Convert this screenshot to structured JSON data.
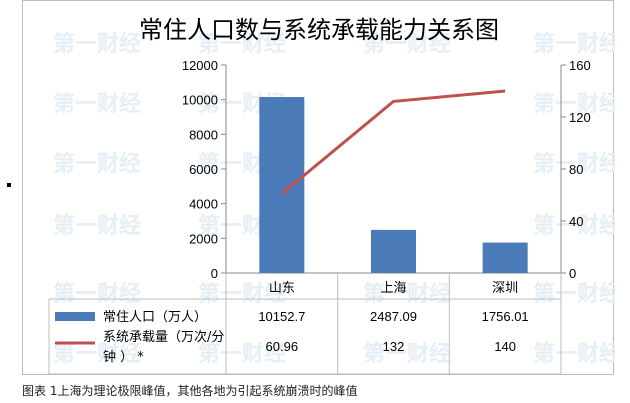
{
  "caption": "图表 1上海为理论极限峰值，其他各地为引起系统崩溃时的峰值",
  "watermark": "第一财经",
  "colors": {
    "bar": "#4a7ab8",
    "line": "#c0504d",
    "axis": "#888888",
    "text": "#000000"
  },
  "chart_data": {
    "type": "bar",
    "title": "常住人口数与系统承载能力关系图",
    "categories": [
      "山东",
      "上海",
      "深圳"
    ],
    "series": [
      {
        "name": "常住人口（万人）",
        "type": "bar",
        "axis": "left",
        "values": [
          10152.7,
          2487.09,
          1756.01
        ],
        "labels": [
          "10152.7",
          "2487.09",
          "1756.01"
        ]
      },
      {
        "name": "系统承载量（万次/分钟）*",
        "type": "line",
        "axis": "right",
        "values": [
          60.96,
          132,
          140
        ],
        "labels": [
          "60.96",
          "132",
          "140"
        ]
      }
    ],
    "y_left": {
      "min": 0,
      "max": 12000,
      "ticks": [
        "0",
        "2000",
        "4000",
        "6000",
        "8000",
        "10000",
        "12000"
      ]
    },
    "y_right": {
      "min": 0,
      "max": 160,
      "ticks": [
        "0",
        "40",
        "80",
        "120",
        "160"
      ]
    },
    "legend": "data-table-below",
    "grid": false
  }
}
